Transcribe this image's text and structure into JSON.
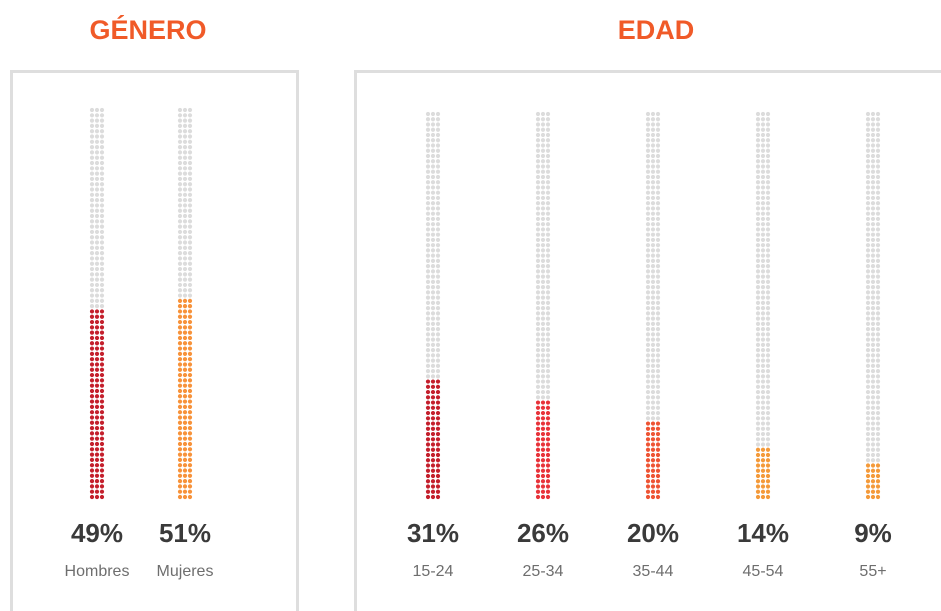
{
  "chart_data": [
    {
      "type": "dot-column",
      "title": "GÉNERO",
      "categories": [
        "Hombres",
        "Mujeres"
      ],
      "values": [
        49,
        51
      ],
      "value_labels": [
        "49%",
        "51%"
      ],
      "colors": [
        "#c41f2c",
        "#f7923a"
      ],
      "ylim": [
        0,
        100
      ]
    },
    {
      "type": "dot-column",
      "title": "EDAD",
      "categories": [
        "15-24",
        "25-34",
        "35-44",
        "45-54",
        "55+"
      ],
      "values": [
        31,
        26,
        20,
        14,
        9
      ],
      "value_labels": [
        "31%",
        "26%",
        "20%",
        "14%",
        "9%"
      ],
      "colors": [
        "#c41f2c",
        "#e8333a",
        "#ee5434",
        "#f49a3a",
        "#f49a3a"
      ],
      "ylim": [
        0,
        100
      ]
    }
  ]
}
